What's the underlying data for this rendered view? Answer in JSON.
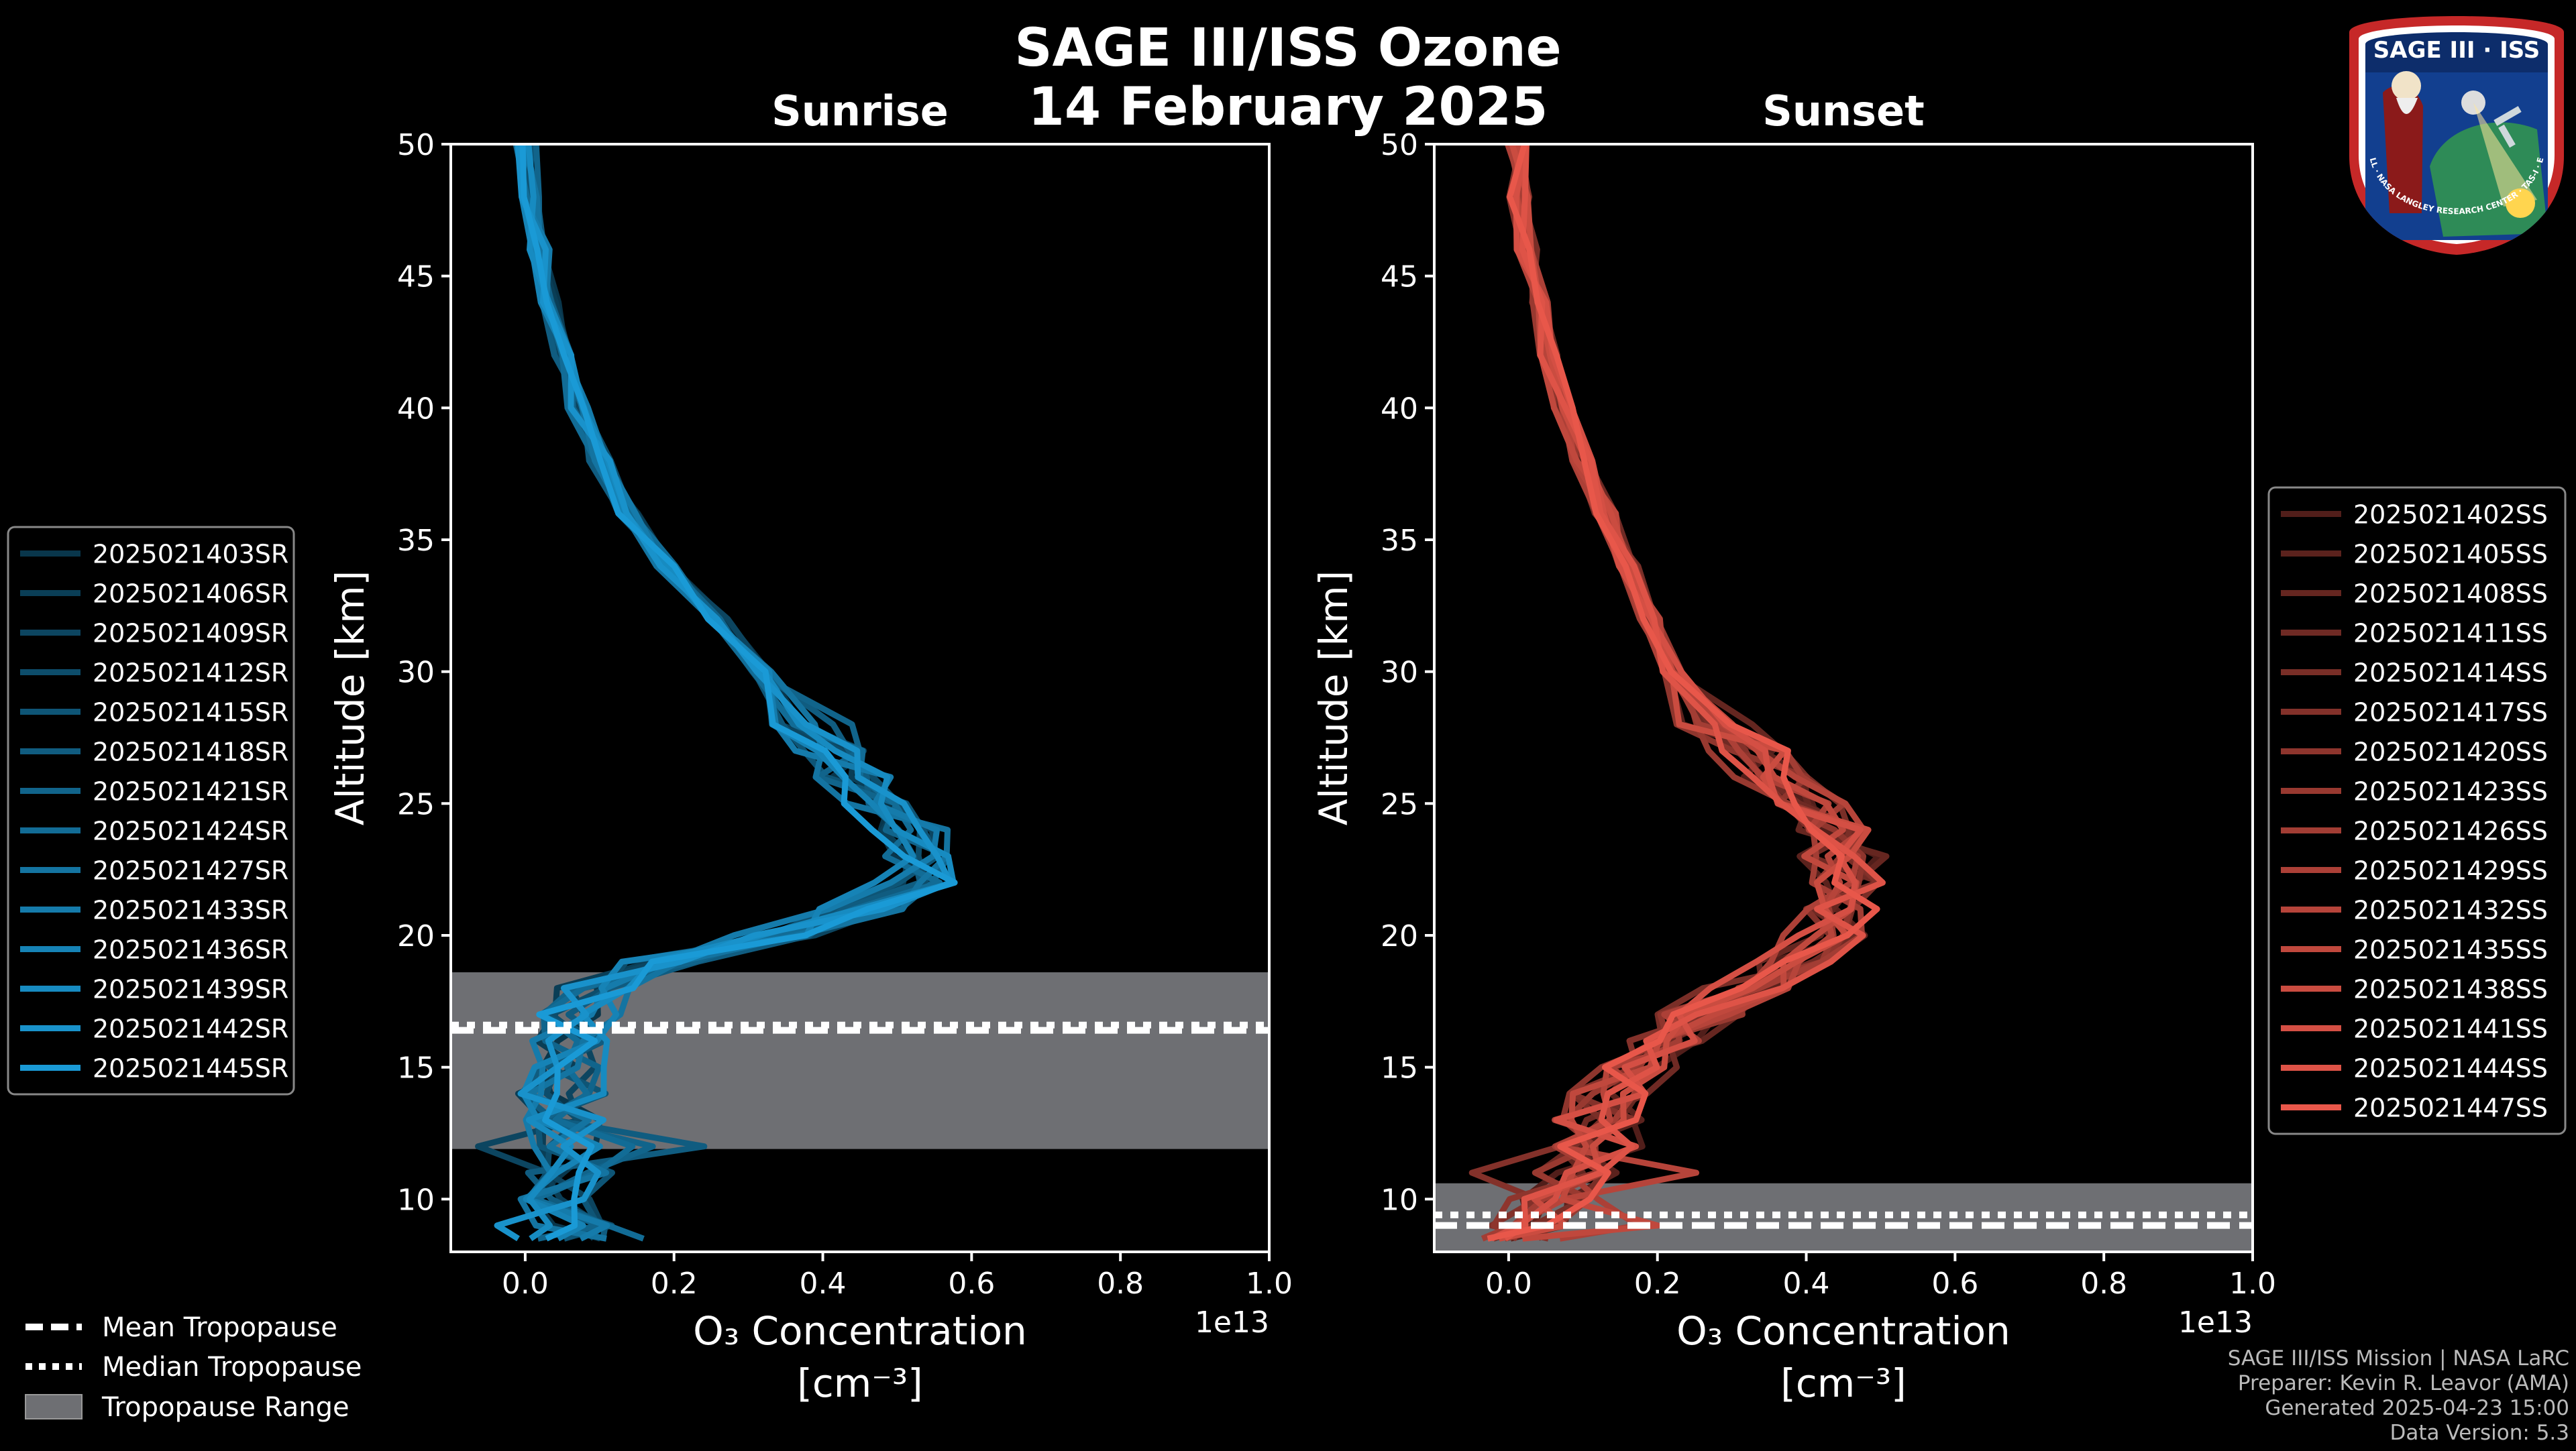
{
  "title": {
    "line1": "SAGE III/ISS Ozone",
    "line2": "14 February 2025"
  },
  "badge": {
    "text_top": "SAGE III · ISS",
    "text_ring": "BALL · NASA LANGLEY RESEARCH CENTER · TAS-I · ESA"
  },
  "legends": {
    "sunrise": [
      "2025021403SR",
      "2025021406SR",
      "2025021409SR",
      "2025021412SR",
      "2025021415SR",
      "2025021418SR",
      "2025021421SR",
      "2025021424SR",
      "2025021427SR",
      "2025021433SR",
      "2025021436SR",
      "2025021439SR",
      "2025021442SR",
      "2025021445SR"
    ],
    "sunset": [
      "2025021402SS",
      "2025021405SS",
      "2025021408SS",
      "2025021411SS",
      "2025021414SS",
      "2025021417SS",
      "2025021420SS",
      "2025021423SS",
      "2025021426SS",
      "2025021429SS",
      "2025021432SS",
      "2025021435SS",
      "2025021438SS",
      "2025021441SS",
      "2025021444SS",
      "2025021447SS"
    ],
    "tropopause": [
      "Mean Tropopause",
      "Median Tropopause",
      "Tropopause Range"
    ]
  },
  "footer": {
    "line1": "SAGE III/ISS Mission | NASA LaRC",
    "line2": "Preparer: Kevin R. Leavor (AMA)",
    "line3": "Generated 2025-04-23 15:00",
    "line4": "Data Version: 5.3"
  },
  "colors": {
    "sunrise": "#1a9ad6",
    "sunset": "#e8574a",
    "range": "#6e6f73"
  },
  "chart_data": [
    {
      "type": "line",
      "title": "Sunrise",
      "xlabel": "O₃ Concentration",
      "xlabel_units": "[cm⁻³]",
      "ylabel": "Altitude [km]",
      "x_multiplier": "1e13",
      "xlim": [
        -0.1,
        1.0
      ],
      "ylim": [
        8,
        50
      ],
      "xticks": [
        0.0,
        0.2,
        0.4,
        0.6,
        0.8,
        1.0
      ],
      "yticks": [
        10,
        15,
        20,
        25,
        30,
        35,
        40,
        45,
        50
      ],
      "altitude_km": [
        50,
        48,
        46,
        44,
        42,
        40,
        38,
        36,
        34,
        32,
        30,
        28,
        27,
        26,
        25,
        24,
        23,
        22,
        21,
        20,
        19,
        18,
        17,
        16,
        15,
        14,
        13,
        12,
        11,
        10,
        9,
        8.5
      ],
      "mean_profile": [
        0.0,
        0.01,
        0.02,
        0.03,
        0.05,
        0.07,
        0.1,
        0.14,
        0.19,
        0.26,
        0.32,
        0.39,
        0.42,
        0.45,
        0.48,
        0.51,
        0.53,
        0.52,
        0.45,
        0.33,
        0.18,
        0.1,
        0.07,
        0.06,
        0.05,
        0.05,
        0.05,
        0.05,
        0.06,
        0.05,
        0.06,
        0.05
      ],
      "tropopause": {
        "mean_km": 16.4,
        "median_km": 16.6,
        "range_km": [
          11.9,
          18.6
        ]
      }
    },
    {
      "type": "line",
      "title": "Sunset",
      "xlabel": "O₃ Concentration",
      "xlabel_units": "[cm⁻³]",
      "ylabel": "Altitude [km]",
      "x_multiplier": "1e13",
      "xlim": [
        -0.1,
        1.0
      ],
      "ylim": [
        8,
        50
      ],
      "xticks": [
        0.0,
        0.2,
        0.4,
        0.6,
        0.8,
        1.0
      ],
      "yticks": [
        10,
        15,
        20,
        25,
        30,
        35,
        40,
        45,
        50
      ],
      "altitude_km": [
        50,
        48,
        46,
        44,
        42,
        40,
        38,
        36,
        34,
        32,
        30,
        28,
        27,
        26,
        25,
        24,
        23,
        22,
        21,
        20,
        19,
        18,
        17,
        16,
        15,
        14,
        13,
        12,
        11,
        10,
        9,
        8.5
      ],
      "mean_profile": [
        0.01,
        0.015,
        0.025,
        0.04,
        0.055,
        0.075,
        0.1,
        0.13,
        0.16,
        0.19,
        0.22,
        0.28,
        0.32,
        0.36,
        0.4,
        0.43,
        0.45,
        0.45,
        0.44,
        0.42,
        0.38,
        0.32,
        0.26,
        0.21,
        0.17,
        0.14,
        0.12,
        0.12,
        0.09,
        0.06,
        0.03,
        0.02
      ],
      "tropopause": {
        "mean_km": 9.0,
        "median_km": 9.4,
        "range_km": [
          8.0,
          10.6
        ]
      }
    }
  ]
}
